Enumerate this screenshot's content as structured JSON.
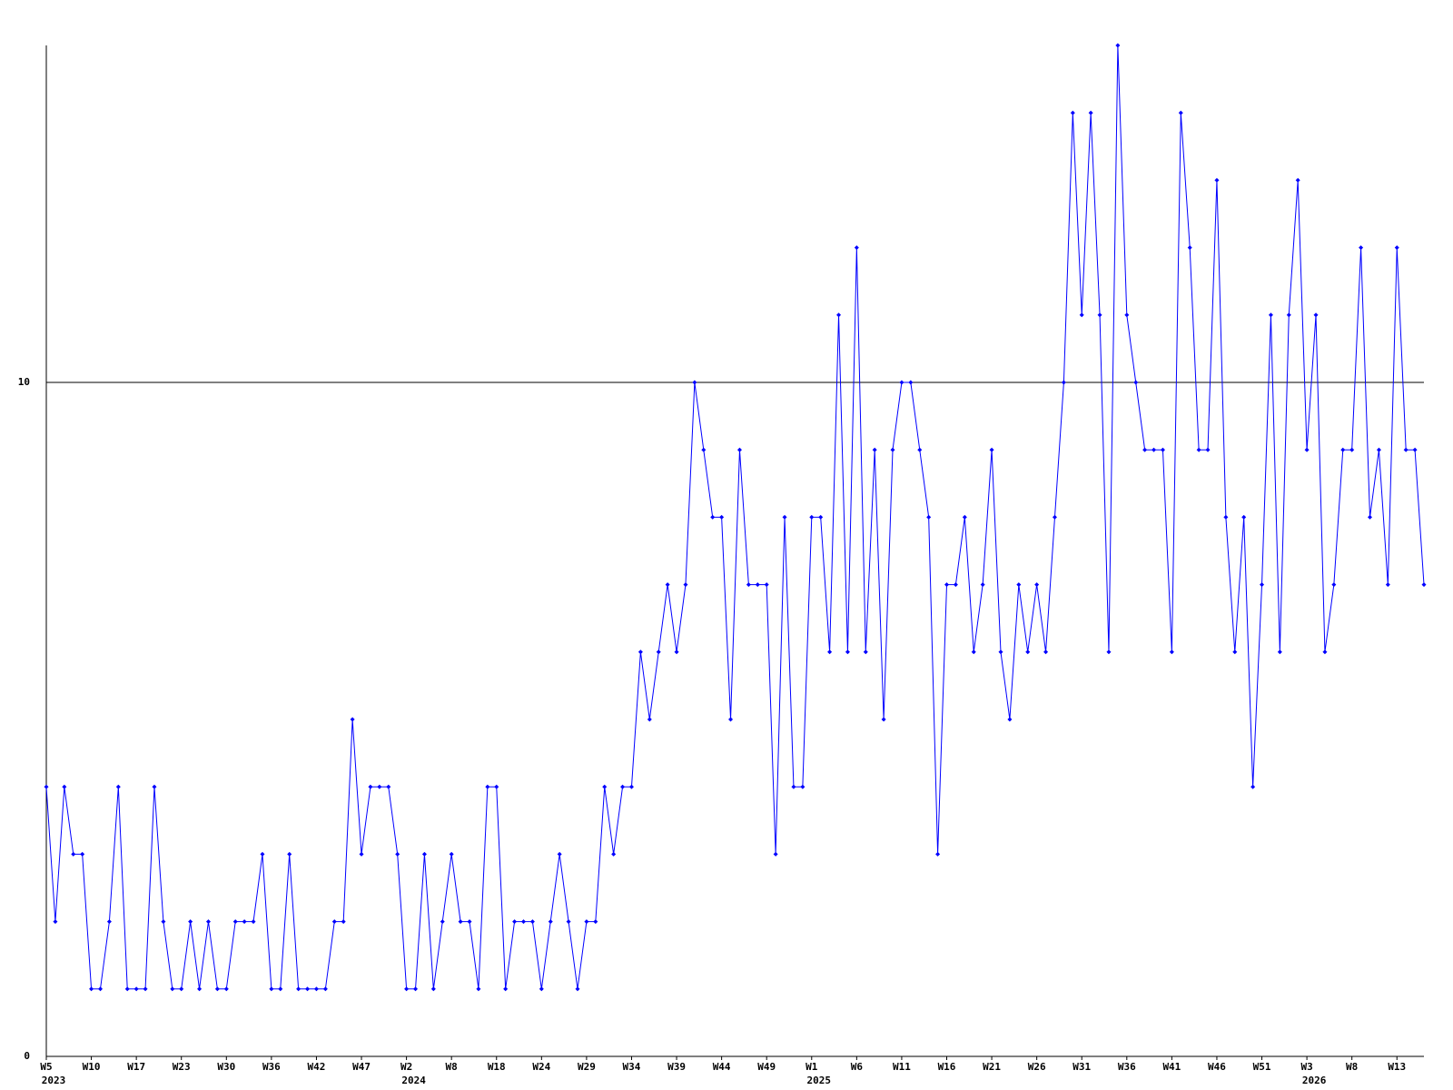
{
  "chart_data": {
    "type": "line",
    "color": "#0000ff",
    "line_color_ref": "#000000",
    "categories": [
      "W5",
      null,
      null,
      null,
      null,
      "W10",
      null,
      null,
      null,
      null,
      "W17",
      null,
      null,
      null,
      null,
      "W23",
      null,
      null,
      null,
      null,
      "W30",
      null,
      null,
      null,
      null,
      "W36",
      null,
      null,
      null,
      null,
      "W42",
      null,
      null,
      null,
      null,
      "W47",
      null,
      null,
      null,
      null,
      "W2",
      null,
      null,
      null,
      null,
      "W8",
      null,
      null,
      null,
      null,
      "W18",
      null,
      null,
      null,
      null,
      "W24",
      null,
      null,
      null,
      null,
      "W29",
      null,
      null,
      null,
      null,
      "W34",
      null,
      null,
      null,
      null,
      "W39",
      null,
      null,
      null,
      null,
      "W44",
      null,
      null,
      null,
      null,
      "W49",
      null,
      null,
      null,
      null,
      "W1",
      null,
      null,
      null,
      null,
      "W6",
      null,
      null,
      null,
      null,
      "W11",
      null,
      null,
      null,
      null,
      "W16",
      null,
      null,
      null,
      null,
      "W21",
      null,
      null,
      null,
      null,
      "W26",
      null,
      null,
      null,
      null,
      "W31",
      null,
      null,
      null,
      null,
      "W36",
      null,
      null,
      null,
      null,
      "W41",
      null,
      null,
      null,
      null,
      "W46",
      null,
      null,
      null,
      null,
      "W51",
      null,
      null,
      null,
      null,
      "W3",
      null,
      null,
      null,
      null,
      "W8",
      null,
      null,
      null,
      null,
      "W13",
      null,
      null,
      null
    ],
    "category_years": [
      "2023",
      null,
      null,
      null,
      null,
      null,
      null,
      null,
      null,
      null,
      null,
      null,
      null,
      null,
      null,
      null,
      null,
      null,
      null,
      null,
      null,
      null,
      null,
      null,
      null,
      null,
      null,
      null,
      null,
      null,
      null,
      null,
      null,
      null,
      null,
      null,
      null,
      null,
      null,
      null,
      "2024",
      null,
      null,
      null,
      null,
      null,
      null,
      null,
      null,
      null,
      null,
      null,
      null,
      null,
      null,
      null,
      null,
      null,
      null,
      null,
      null,
      null,
      null,
      null,
      null,
      null,
      null,
      null,
      null,
      null,
      null,
      null,
      null,
      null,
      null,
      null,
      null,
      null,
      null,
      null,
      null,
      null,
      null,
      null,
      null,
      "2025",
      null,
      null,
      null,
      null,
      null,
      null,
      null,
      null,
      null,
      null,
      null,
      null,
      null,
      null,
      null,
      null,
      null,
      null,
      null,
      null,
      null,
      null,
      null,
      null,
      null,
      null,
      null,
      null,
      null,
      null,
      null,
      null,
      null,
      null,
      null,
      null,
      null,
      null,
      null,
      null,
      null,
      null,
      null,
      null,
      null,
      null,
      null,
      null,
      null,
      null,
      null,
      null,
      null,
      null,
      "2026",
      null,
      null,
      null,
      null,
      null,
      null,
      null,
      null,
      null,
      null,
      null,
      null,
      null
    ],
    "values": [
      4,
      2,
      4,
      3,
      3,
      1,
      1,
      2,
      4,
      1,
      1,
      1,
      4,
      2,
      1,
      1,
      2,
      1,
      2,
      1,
      1,
      2,
      2,
      2,
      3,
      1,
      1,
      3,
      1,
      1,
      1,
      1,
      2,
      2,
      5,
      3,
      4,
      4,
      4,
      3,
      1,
      1,
      3,
      1,
      2,
      3,
      2,
      2,
      1,
      4,
      4,
      1,
      2,
      2,
      2,
      1,
      2,
      3,
      2,
      1,
      2,
      2,
      4,
      3,
      4,
      4,
      6,
      5,
      6,
      7,
      6,
      7,
      10,
      9,
      8,
      8,
      5,
      9,
      7,
      7,
      7,
      3,
      8,
      4,
      4,
      8,
      8,
      6,
      11,
      6,
      12,
      6,
      9,
      5,
      9,
      10,
      10,
      9,
      8,
      3,
      7,
      7,
      8,
      6,
      7,
      9,
      6,
      5,
      7,
      6,
      7,
      6,
      8,
      10,
      14,
      11,
      14,
      11,
      6,
      15,
      11,
      10,
      9,
      9,
      9,
      6,
      14,
      12,
      9,
      9,
      13,
      8,
      6,
      8,
      4,
      7,
      11,
      6,
      11,
      13,
      9,
      11,
      6,
      7,
      9,
      9,
      12,
      8,
      9,
      7,
      12,
      9,
      9,
      7
    ],
    "ylim": [
      0,
      15
    ],
    "yticks": [
      0,
      10
    ],
    "grid": true
  }
}
